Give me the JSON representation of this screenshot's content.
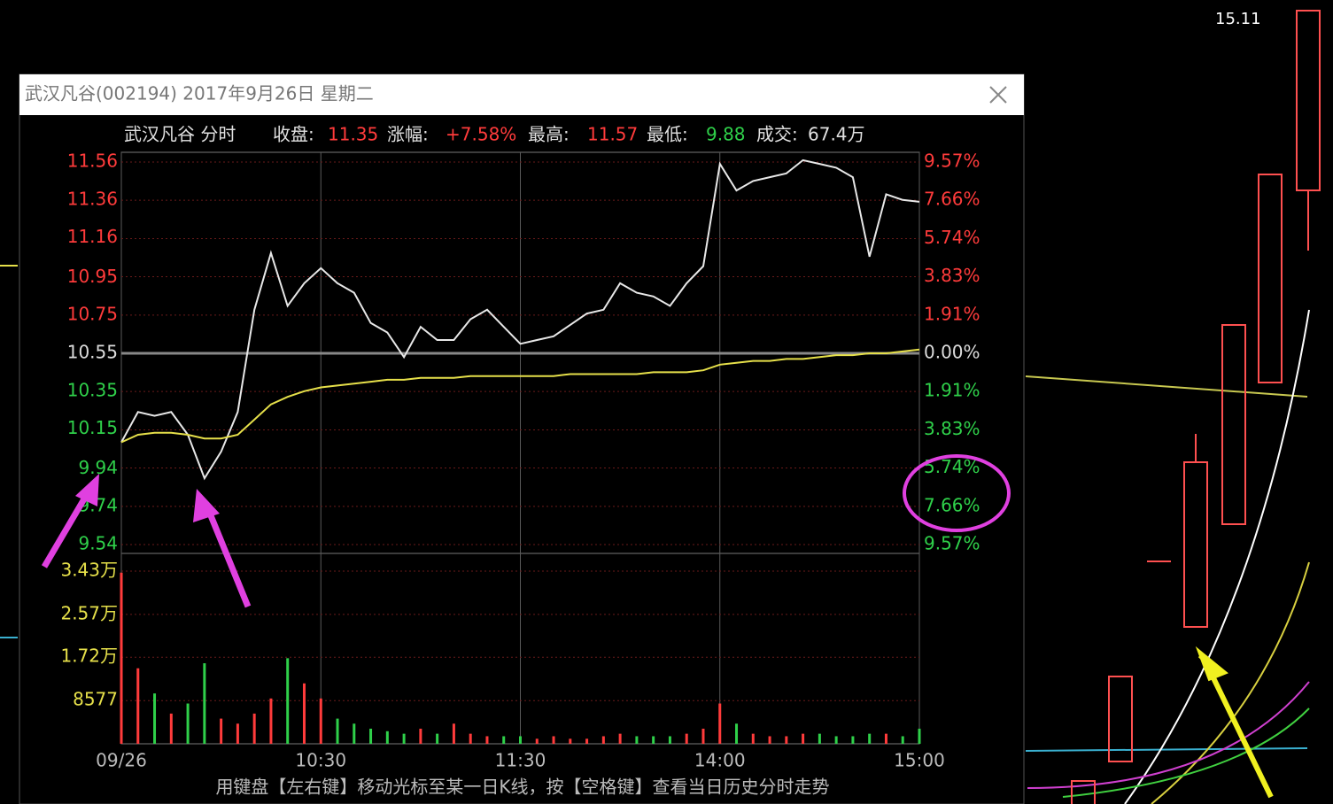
{
  "window": {
    "title": "武汉凡谷(002194) 2017年9月26日 星期二"
  },
  "background": {
    "price_label": "15.11"
  },
  "info": {
    "name": "武汉凡谷 分时",
    "close_label": "收盘:",
    "close": "11.35",
    "change_label": "涨幅:",
    "change": "+7.58%",
    "high_label": "最高:",
    "high": "11.57",
    "low_label": "最低:",
    "low": "9.88",
    "volume_label": "成交:",
    "volume": "67.4万"
  },
  "hint": "用键盘【左右键】移动光标至某一日K线，按【空格键】查看当日历史分时走势",
  "chart_data": [
    {
      "type": "line",
      "x": [
        0,
        5,
        10,
        15,
        20,
        25,
        30,
        35,
        40,
        45,
        50,
        55,
        60,
        65,
        70,
        75,
        80,
        85,
        90,
        95,
        100,
        105,
        110,
        115,
        120,
        125,
        130,
        135,
        140,
        145,
        150,
        155,
        160,
        165,
        170,
        175,
        180,
        185,
        190,
        195,
        200,
        205,
        210,
        215,
        220,
        225,
        230,
        235,
        240
      ],
      "xlim": [
        0,
        240
      ],
      "xticks": [
        {
          "value": 0,
          "label": "09/26"
        },
        {
          "value": 60,
          "label": "10:30"
        },
        {
          "value": 120,
          "label": "11:30"
        },
        {
          "value": 180,
          "label": "14:00"
        },
        {
          "value": 240,
          "label": "15:00"
        }
      ],
      "ylim": [
        9.54,
        11.56
      ],
      "yticks": [
        11.56,
        11.36,
        11.16,
        10.95,
        10.75,
        10.55,
        10.35,
        10.15,
        9.94,
        9.74,
        9.54
      ],
      "y2lim": [
        -9.57,
        9.57
      ],
      "y2ticks": [
        {
          "value": 9.57,
          "label": "9.57%"
        },
        {
          "value": 7.66,
          "label": "7.66%"
        },
        {
          "value": 5.74,
          "label": "5.74%"
        },
        {
          "value": 3.83,
          "label": "3.83%"
        },
        {
          "value": 1.91,
          "label": "1.91%"
        },
        {
          "value": 0,
          "label": "0.00%"
        },
        {
          "value": -1.91,
          "label": "1.91%"
        },
        {
          "value": -3.83,
          "label": "3.83%"
        },
        {
          "value": -5.74,
          "label": "5.74%"
        },
        {
          "value": -7.66,
          "label": "7.66%"
        },
        {
          "value": -9.57,
          "label": "9.57%"
        }
      ],
      "up_color": "#ff3b3b",
      "down_color": "#2fd04a",
      "flat_color": "#dddddd",
      "series": [
        {
          "color": "#e8e8e8",
          "values": [
            10.08,
            10.24,
            10.22,
            10.24,
            10.12,
            9.89,
            10.03,
            10.24,
            10.78,
            11.08,
            10.8,
            10.92,
            11.0,
            10.92,
            10.87,
            10.71,
            10.66,
            10.53,
            10.69,
            10.62,
            10.62,
            10.73,
            10.78,
            10.69,
            10.6,
            10.62,
            10.64,
            10.7,
            10.76,
            10.78,
            10.92,
            10.87,
            10.85,
            10.8,
            10.92,
            11.01,
            11.55,
            11.41,
            11.46,
            11.48,
            11.5,
            11.57,
            11.55,
            11.53,
            11.48,
            11.06,
            11.39,
            11.36,
            11.35
          ]
        },
        {
          "color": "#e6e04a",
          "values": [
            10.08,
            10.12,
            10.13,
            10.13,
            10.12,
            10.1,
            10.1,
            10.12,
            10.2,
            10.28,
            10.32,
            10.35,
            10.37,
            10.38,
            10.39,
            10.4,
            10.41,
            10.41,
            10.42,
            10.42,
            10.42,
            10.43,
            10.43,
            10.43,
            10.43,
            10.43,
            10.43,
            10.44,
            10.44,
            10.44,
            10.44,
            10.44,
            10.45,
            10.45,
            10.45,
            10.46,
            10.49,
            10.5,
            10.51,
            10.51,
            10.52,
            10.52,
            10.53,
            10.54,
            10.54,
            10.55,
            10.55,
            10.56,
            10.57
          ]
        }
      ]
    },
    {
      "type": "bar",
      "ylim": [
        0,
        34300
      ],
      "yticks": [
        {
          "value": 34300,
          "label": "3.43万"
        },
        {
          "value": 25700,
          "label": "2.57万"
        },
        {
          "value": 17200,
          "label": "1.72万"
        },
        8577
      ],
      "values": [
        34000,
        15000,
        10000,
        6000,
        8000,
        16000,
        5000,
        4000,
        6000,
        9000,
        17000,
        12000,
        9000,
        5000,
        4000,
        3000,
        2500,
        2000,
        3000,
        2000,
        4000,
        2000,
        1500,
        1500,
        1500,
        1000,
        1500,
        1000,
        1000,
        1500,
        2000,
        1500,
        1500,
        1500,
        2000,
        3000,
        8000,
        4000,
        2000,
        1500,
        1500,
        2000,
        2000,
        1500,
        1500,
        2000,
        2000,
        1500,
        3000
      ]
    }
  ]
}
